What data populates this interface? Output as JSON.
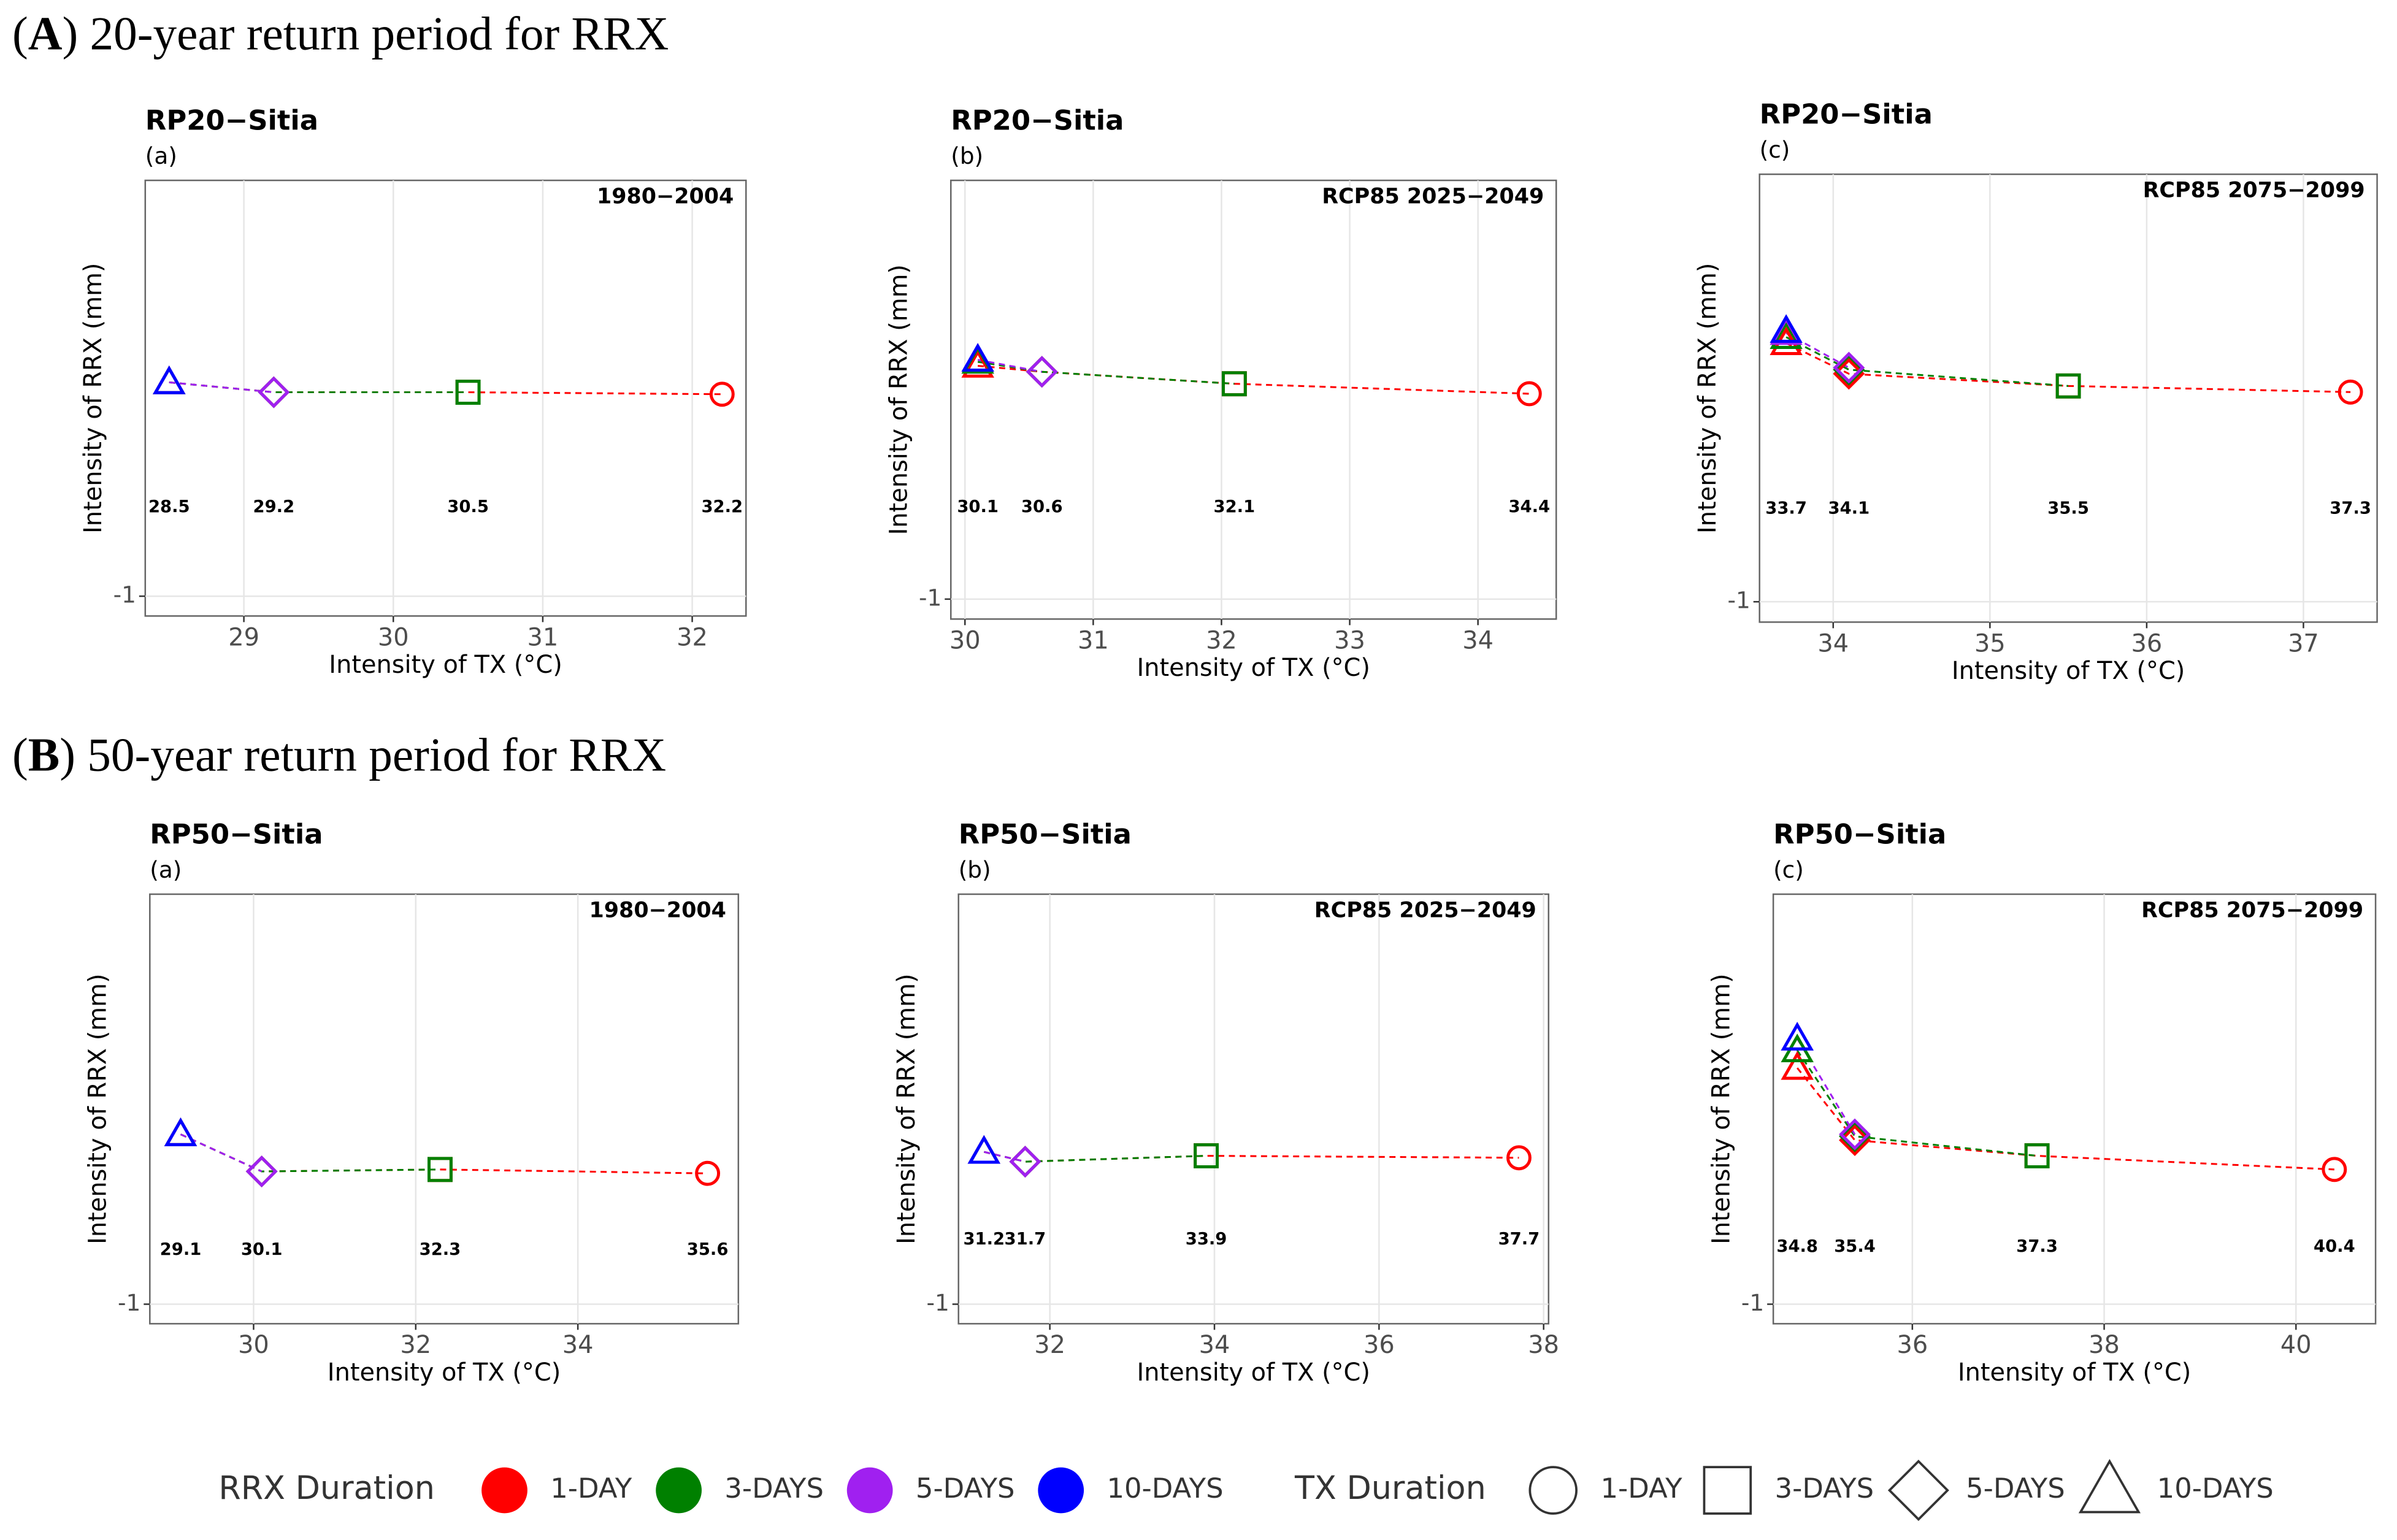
{
  "headings": [
    {
      "open": "(",
      "letter": "A",
      "text": ") 20-year return period for RRX"
    },
    {
      "open": "(",
      "letter": "B",
      "text": ") 50-year return period for RRX"
    }
  ],
  "chart_data": [
    {
      "type": "scatter",
      "title": "RP20−Sitia",
      "subtitle": "(a)",
      "annotation": "1980−2004",
      "xlabel": "Intensity of TX (°C)",
      "ylabel": "Intensity of RRX (mm)",
      "xlim": [
        28.34,
        32.36
      ],
      "ylim": [
        -1.1,
        1.1
      ],
      "xticks": [
        29,
        30,
        31,
        32
      ],
      "yticks": [
        -1
      ],
      "grid": true,
      "series": [
        {
          "color": "#ff0000",
          "shapes": [
            "triangle",
            "diamond",
            "square",
            "circle"
          ],
          "x": [
            28.5,
            29.2,
            30.5,
            32.2
          ],
          "values": [
            0.08,
            0.03,
            0.03,
            0.02
          ]
        },
        {
          "color": "#008000",
          "shapes": [
            "triangle",
            "diamond",
            "square"
          ],
          "x": [
            28.5,
            29.2,
            30.5
          ],
          "values": [
            0.08,
            0.03,
            0.03
          ]
        },
        {
          "color": "#a020f0",
          "shapes": [
            "triangle",
            "diamond"
          ],
          "x": [
            28.5,
            29.2
          ],
          "values": [
            0.08,
            0.03
          ]
        },
        {
          "color": "#0000ff",
          "shapes": [
            "triangle"
          ],
          "x": [
            28.5
          ],
          "values": [
            0.08
          ]
        }
      ]
    },
    {
      "type": "scatter",
      "title": "RP20−Sitia",
      "subtitle": "(b)",
      "annotation": "RCP85 2025−2049",
      "xlabel": "Intensity of TX (°C)",
      "ylabel": "Intensity of RRX (mm)",
      "xlim": [
        29.89,
        34.61
      ],
      "ylim": [
        -1.1,
        1.1
      ],
      "xticks": [
        30,
        31,
        32,
        33,
        34
      ],
      "yticks": [
        -1
      ],
      "grid": true,
      "series": [
        {
          "color": "#ff0000",
          "shapes": [
            "triangle",
            "diamond",
            "square",
            "circle"
          ],
          "x": [
            30.1,
            30.6,
            32.1,
            34.4
          ],
          "values": [
            0.17,
            0.14,
            0.08,
            0.03
          ]
        },
        {
          "color": "#008000",
          "shapes": [
            "triangle",
            "diamond",
            "square"
          ],
          "x": [
            30.1,
            30.6,
            32.1
          ],
          "values": [
            0.19,
            0.14,
            0.08
          ]
        },
        {
          "color": "#a020f0",
          "shapes": [
            "triangle",
            "diamond"
          ],
          "x": [
            30.1,
            30.6
          ],
          "values": [
            0.2,
            0.14
          ]
        },
        {
          "color": "#0000ff",
          "shapes": [
            "triangle"
          ],
          "x": [
            30.1
          ],
          "values": [
            0.2
          ]
        }
      ]
    },
    {
      "type": "scatter",
      "title": "RP20−Sitia",
      "subtitle": "(c)",
      "annotation": "RCP85 2075−2099",
      "xlabel": "Intensity of TX (°C)",
      "ylabel": "Intensity of RRX (mm)",
      "xlim": [
        33.53,
        37.47
      ],
      "ylim": [
        -1.1,
        1.1
      ],
      "xticks": [
        34,
        35,
        36,
        37
      ],
      "yticks": [
        -1
      ],
      "grid": true,
      "series": [
        {
          "color": "#ff0000",
          "shapes": [
            "triangle",
            "diamond",
            "square",
            "circle"
          ],
          "x": [
            33.7,
            34.1,
            35.5,
            37.3
          ],
          "values": [
            0.27,
            0.12,
            0.06,
            0.03
          ]
        },
        {
          "color": "#008000",
          "shapes": [
            "triangle",
            "diamond",
            "square"
          ],
          "x": [
            33.7,
            34.1,
            35.5
          ],
          "values": [
            0.3,
            0.14,
            0.06
          ]
        },
        {
          "color": "#a020f0",
          "shapes": [
            "triangle",
            "diamond"
          ],
          "x": [
            33.7,
            34.1
          ],
          "values": [
            0.32,
            0.15
          ]
        },
        {
          "color": "#0000ff",
          "shapes": [
            "triangle"
          ],
          "x": [
            33.7
          ],
          "values": [
            0.33
          ]
        }
      ]
    },
    {
      "type": "scatter",
      "title": "RP50−Sitia",
      "subtitle": "(a)",
      "annotation": "1980−2004",
      "xlabel": "Intensity of TX (°C)",
      "ylabel": "Intensity of RRX (mm)",
      "xlim": [
        28.72,
        35.98
      ],
      "ylim": [
        -1.1,
        1.1
      ],
      "xticks": [
        30,
        32,
        34
      ],
      "yticks": [
        -1
      ],
      "grid": true,
      "series": [
        {
          "color": "#ff0000",
          "shapes": [
            "triangle",
            "diamond",
            "square",
            "circle"
          ],
          "x": [
            29.1,
            30.1,
            32.3,
            35.6
          ],
          "values": [
            -0.13,
            -0.32,
            -0.31,
            -0.33
          ]
        },
        {
          "color": "#008000",
          "shapes": [
            "triangle",
            "diamond",
            "square"
          ],
          "x": [
            29.1,
            30.1,
            32.3
          ],
          "values": [
            -0.13,
            -0.32,
            -0.31
          ]
        },
        {
          "color": "#a020f0",
          "shapes": [
            "triangle",
            "diamond"
          ],
          "x": [
            29.1,
            30.1
          ],
          "values": [
            -0.13,
            -0.32
          ]
        },
        {
          "color": "#0000ff",
          "shapes": [
            "triangle"
          ],
          "x": [
            29.1
          ],
          "values": [
            -0.13
          ]
        }
      ]
    },
    {
      "type": "scatter",
      "title": "RP50−Sitia",
      "subtitle": "(b)",
      "annotation": "RCP85 2025−2049",
      "xlabel": "Intensity of TX (°C)",
      "ylabel": "Intensity of RRX (mm)",
      "xlim": [
        30.89,
        38.06
      ],
      "ylim": [
        -1.1,
        1.1
      ],
      "xticks": [
        32,
        34,
        36,
        38
      ],
      "yticks": [
        -1
      ],
      "grid": true,
      "series": [
        {
          "color": "#ff0000",
          "shapes": [
            "triangle",
            "diamond",
            "square",
            "circle"
          ],
          "x": [
            31.2,
            31.7,
            33.9,
            37.7
          ],
          "values": [
            -0.22,
            -0.27,
            -0.24,
            -0.25
          ]
        },
        {
          "color": "#008000",
          "shapes": [
            "triangle",
            "diamond",
            "square"
          ],
          "x": [
            31.2,
            31.7,
            33.9
          ],
          "values": [
            -0.22,
            -0.27,
            -0.24
          ]
        },
        {
          "color": "#a020f0",
          "shapes": [
            "triangle",
            "diamond"
          ],
          "x": [
            31.2,
            31.7
          ],
          "values": [
            -0.22,
            -0.27
          ]
        },
        {
          "color": "#0000ff",
          "shapes": [
            "triangle"
          ],
          "x": [
            31.2
          ],
          "values": [
            -0.22
          ]
        }
      ]
    },
    {
      "type": "scatter",
      "title": "RP50−Sitia",
      "subtitle": "(c)",
      "annotation": "RCP85 2075−2099",
      "xlabel": "Intensity of TX (°C)",
      "ylabel": "Intensity of RRX (mm)",
      "xlim": [
        34.55,
        40.83
      ],
      "ylim": [
        -1.1,
        1.1
      ],
      "xticks": [
        36,
        38,
        40
      ],
      "yticks": [
        -1
      ],
      "grid": true,
      "series": [
        {
          "color": "#ff0000",
          "shapes": [
            "triangle",
            "diamond",
            "square",
            "circle"
          ],
          "x": [
            34.8,
            35.4,
            37.3,
            40.4
          ],
          "values": [
            0.21,
            -0.16,
            -0.24,
            -0.31
          ]
        },
        {
          "color": "#008000",
          "shapes": [
            "triangle",
            "diamond",
            "square"
          ],
          "x": [
            34.8,
            35.4,
            37.3
          ],
          "values": [
            0.3,
            -0.14,
            -0.24
          ]
        },
        {
          "color": "#a020f0",
          "shapes": [
            "triangle",
            "diamond"
          ],
          "x": [
            34.8,
            35.4
          ],
          "values": [
            0.36,
            -0.13
          ]
        },
        {
          "color": "#0000ff",
          "shapes": [
            "triangle"
          ],
          "x": [
            34.8
          ],
          "values": [
            0.36
          ]
        }
      ]
    }
  ],
  "legend": {
    "rrx_title": "RRX Duration",
    "rrx_items": [
      {
        "label": "1-DAY",
        "color": "#ff0000"
      },
      {
        "label": "3-DAYS",
        "color": "#008000"
      },
      {
        "label": "5-DAYS",
        "color": "#a020f0"
      },
      {
        "label": "10-DAYS",
        "color": "#0000ff"
      }
    ],
    "tx_title": "TX Duration",
    "tx_items": [
      {
        "label": "1-DAY",
        "shape": "circle"
      },
      {
        "label": "3-DAYS",
        "shape": "square"
      },
      {
        "label": "5-DAYS",
        "shape": "diamond"
      },
      {
        "label": "10-DAYS",
        "shape": "triangle"
      }
    ]
  }
}
